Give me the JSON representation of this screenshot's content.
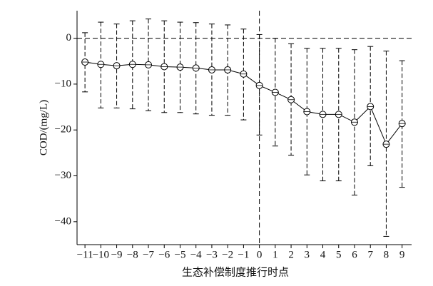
{
  "chart_data": {
    "type": "errorbar-line",
    "x_label": "生态补偿制度推行时点",
    "y_label": "COD/(mg/L)",
    "x": [
      -11,
      -10,
      -9,
      -8,
      -7,
      -6,
      -5,
      -4,
      -3,
      -2,
      -1,
      0,
      1,
      2,
      3,
      4,
      5,
      6,
      7,
      8,
      9
    ],
    "values": [
      -5.2,
      -5.7,
      -6.0,
      -5.7,
      -5.8,
      -6.2,
      -6.3,
      -6.5,
      -6.9,
      -6.9,
      -7.8,
      -10.3,
      -11.8,
      -13.4,
      -16.0,
      -16.6,
      -16.6,
      -18.3,
      -14.9,
      -23.1,
      -18.6
    ],
    "lower": [
      -11.7,
      -15.2,
      -15.2,
      -15.4,
      -15.8,
      -16.2,
      -16.2,
      -16.5,
      -16.8,
      -16.8,
      -17.8,
      -21.1,
      -23.5,
      -25.5,
      -29.8,
      -31.1,
      -31.1,
      -34.2,
      -27.8,
      -43.2,
      -32.5
    ],
    "upper": [
      1.2,
      3.5,
      3.1,
      3.8,
      4.2,
      3.8,
      3.5,
      3.4,
      3.1,
      2.9,
      2.0,
      0.8,
      0,
      -1.2,
      -2.2,
      -2.2,
      -2.2,
      -2.5,
      -1.8,
      -2.8,
      -4.9
    ],
    "color": "#000000",
    "xlim": [
      -11.5,
      9.6
    ],
    "ylim": [
      -45,
      6
    ],
    "xticks": [
      {
        "value": -11,
        "label": "−11"
      },
      {
        "value": -10,
        "label": "−10"
      },
      {
        "value": -9,
        "label": "−9"
      },
      {
        "value": -8,
        "label": "−8"
      },
      {
        "value": -7,
        "label": "−7"
      },
      {
        "value": -6,
        "label": "−6"
      },
      {
        "value": -5,
        "label": "−5"
      },
      {
        "value": -4,
        "label": "−4"
      },
      {
        "value": -3,
        "label": "−3"
      },
      {
        "value": -2,
        "label": "−2"
      },
      {
        "value": -1,
        "label": "−1"
      },
      0,
      1,
      2,
      3,
      4,
      5,
      6,
      7,
      8,
      9
    ],
    "yticks": [
      0,
      {
        "value": -10,
        "label": "−10"
      },
      {
        "value": -20,
        "label": "−20"
      },
      {
        "value": -30,
        "label": "−30"
      },
      {
        "value": -40,
        "label": "−40"
      }
    ],
    "reference_lines": {
      "y": 0,
      "x": 0
    },
    "grid": false
  }
}
